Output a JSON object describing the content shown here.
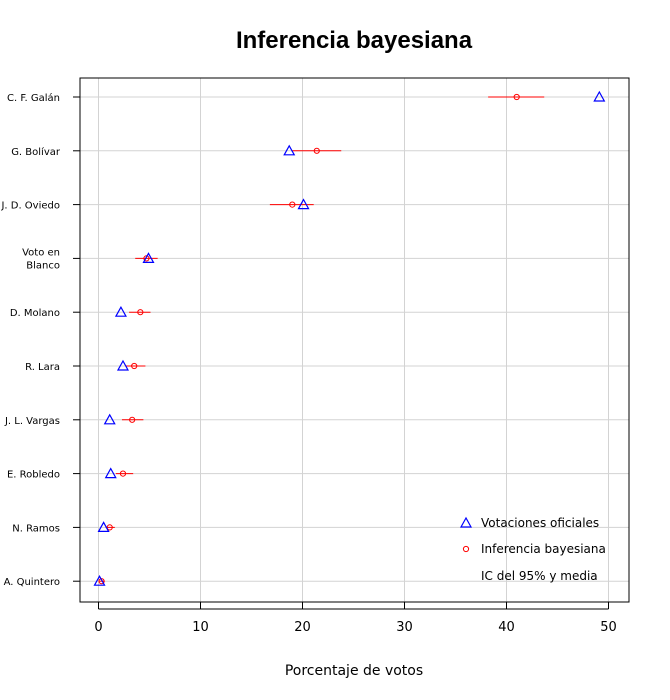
{
  "chart_data": {
    "type": "scatter",
    "title": "Inferencia bayesiana",
    "xlabel": "Porcentaje de votos",
    "ylabel": "",
    "xlim": [
      -2,
      52
    ],
    "xticks": [
      0,
      10,
      20,
      30,
      40,
      50
    ],
    "grid": true,
    "legend_position": "bottom-right",
    "categories": [
      [
        "C. F. Galán"
      ],
      [
        "G. Bolívar"
      ],
      [
        "J. D. Oviedo"
      ],
      [
        "Voto en",
        "Blanco"
      ],
      [
        "D. Molano"
      ],
      [
        "R. Lara"
      ],
      [
        "J. L. Vargas"
      ],
      [
        "E. Robledo"
      ],
      [
        "N. Ramos"
      ],
      [
        "A. Quintero"
      ]
    ],
    "series": [
      {
        "name": "Votaciones oficiales",
        "marker": "triangle",
        "color": "#0000ff",
        "values": [
          49.1,
          18.7,
          20.1,
          4.9,
          2.2,
          2.4,
          1.1,
          1.2,
          0.5,
          0.1
        ]
      },
      {
        "name": "Inferencia bayesiana",
        "marker": "circle",
        "color": "#ff0000",
        "values": [
          41.0,
          21.4,
          19.0,
          4.7,
          4.1,
          3.5,
          3.3,
          2.4,
          1.1,
          0.3
        ],
        "ci_low": [
          38.2,
          19.0,
          16.8,
          3.6,
          3.0,
          2.7,
          2.3,
          1.7,
          0.7,
          0.1
        ],
        "ci_high": [
          43.7,
          23.8,
          21.1,
          5.8,
          5.1,
          4.6,
          4.4,
          3.4,
          1.6,
          0.6
        ]
      }
    ],
    "legend": {
      "entries": [
        "Votaciones oficiales",
        "Inferencia bayesiana",
        "IC del 95% y media"
      ]
    }
  }
}
